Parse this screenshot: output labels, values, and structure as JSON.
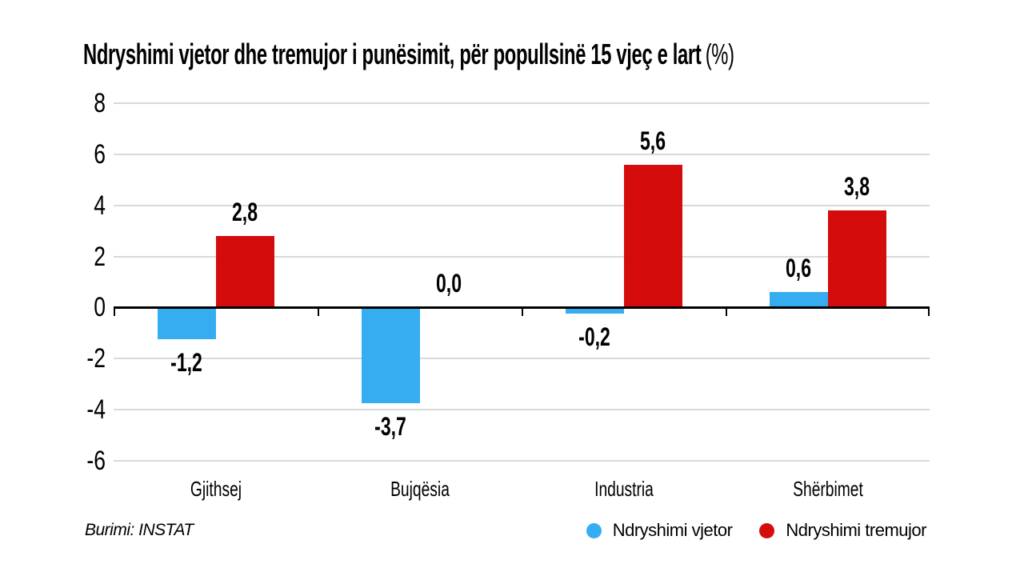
{
  "title": {
    "main": "Ndryshimi vjetor dhe tremujor i punësimit, për popullsinë 15 vjeç e lart",
    "suffix": "(%)"
  },
  "source": {
    "text": "Burimi: INSTAT"
  },
  "legend": {
    "position": "bottom-right",
    "items": [
      {
        "label": "Ndryshimi vjetor",
        "color": "#35ADF0"
      },
      {
        "label": "Ndryshimi tremujor",
        "color": "#D40C0C"
      }
    ]
  },
  "chart_data": {
    "type": "bar",
    "title": "Ndryshimi vjetor dhe tremujor i punësimit, për popullsinë 15 vjeç e lart (%)",
    "categories": [
      "Gjithsej",
      "Bujqësia",
      "Industria",
      "Shërbimet"
    ],
    "series": [
      {
        "name": "Ndryshimi vjetor",
        "color": "#35ADF0",
        "values": [
          -1.2,
          -3.7,
          -0.2,
          0.6
        ],
        "labels": [
          "-1,2",
          "-3,7",
          "-0,2",
          "0,6"
        ]
      },
      {
        "name": "Ndryshimi tremujor",
        "color": "#D40C0C",
        "values": [
          2.8,
          0.0,
          5.6,
          3.8
        ],
        "labels": [
          "2,8",
          "0,0",
          "5,6",
          "3,8"
        ]
      }
    ],
    "xlabel": "",
    "ylabel": "",
    "ylim": [
      -6,
      8
    ],
    "yticks": [
      8,
      6,
      4,
      2,
      0,
      -2,
      -4,
      -6
    ],
    "ytick_labels": [
      "8",
      "6",
      "4",
      "2",
      "0",
      "-2",
      "-4",
      "-6"
    ],
    "grid": true,
    "axis_color": "#000000",
    "gridline_color": "#d9d9d9"
  }
}
